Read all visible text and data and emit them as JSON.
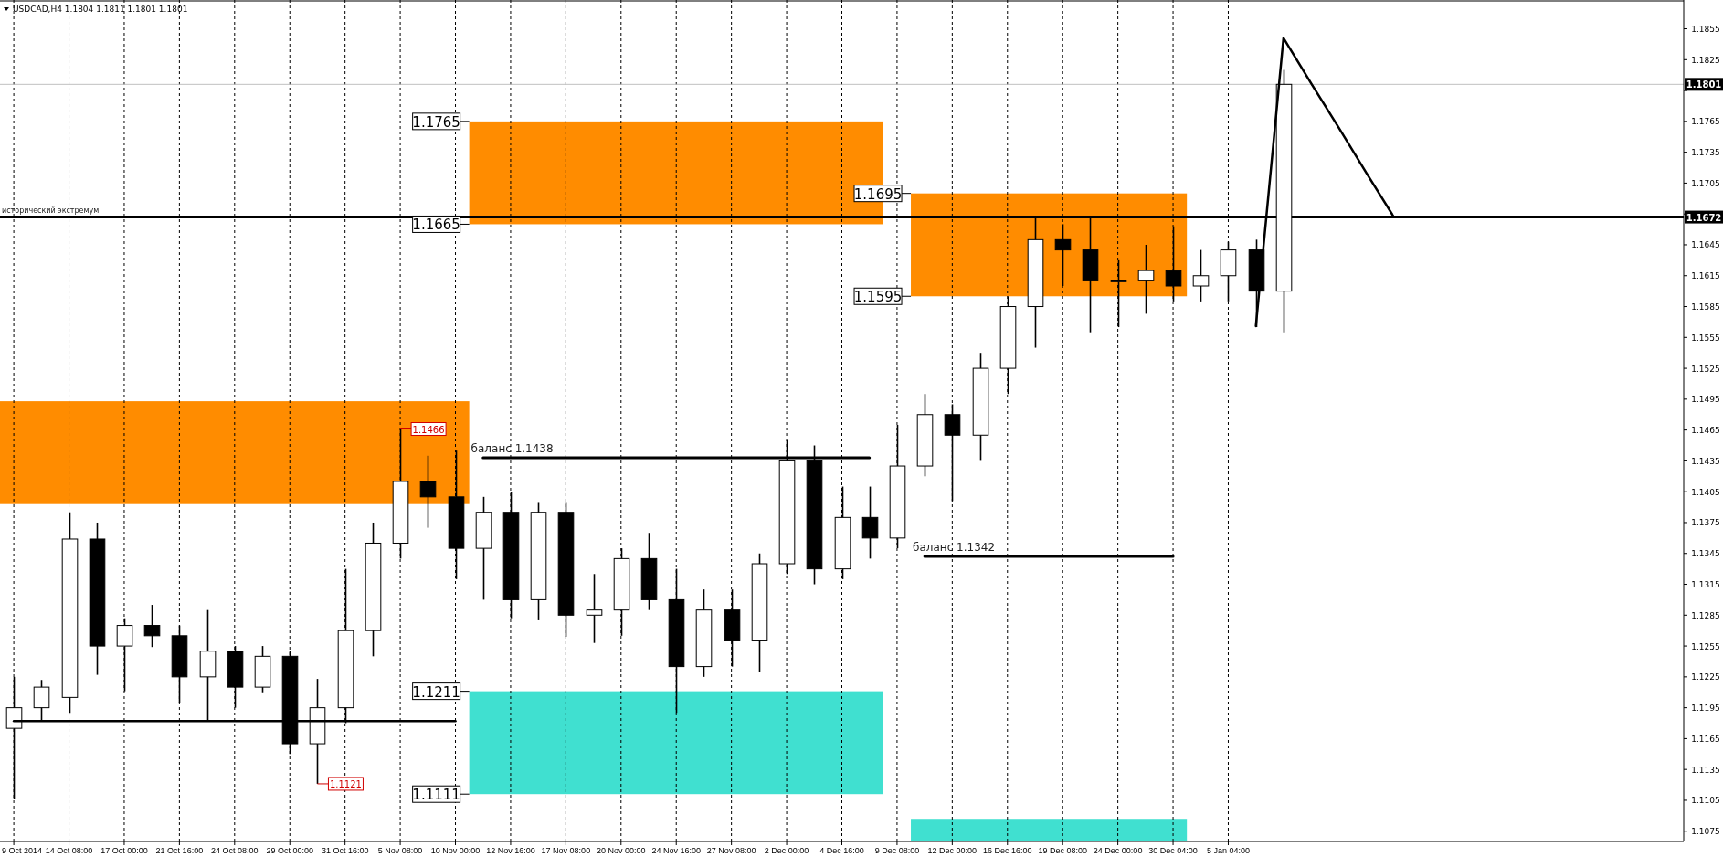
{
  "chart_data": {
    "type": "candlestick",
    "title": "USDCAD,H4  1.1804 1.1811 1.1801 1.1801",
    "ylim": [
      1.1065,
      1.1883
    ],
    "categories": [
      "9 Oct 2014",
      null,
      "14 Oct 08:00",
      null,
      "17 Oct 00:00",
      null,
      "21 Oct 16:00",
      null,
      "24 Oct 08:00",
      null,
      "29 Oct 00:00",
      null,
      "31 Oct 16:00",
      null,
      "5 Nov 08:00",
      null,
      "10 Nov 00:00",
      null,
      "12 Nov 16:00",
      null,
      "17 Nov 08:00",
      null,
      "20 Nov 00:00",
      null,
      "24 Nov 16:00",
      null,
      "27 Nov 08:00",
      null,
      "2 Dec 00:00",
      null,
      "4 Dec 16:00",
      null,
      "9 Dec 08:00",
      null,
      "12 Dec 00:00",
      null,
      "16 Dec 16:00",
      null,
      "19 Dec 08:00",
      null,
      "24 Dec 00:00",
      null,
      "30 Dec 04:00",
      null,
      "5 Jan 04:00",
      null,
      null,
      null,
      null,
      null,
      null,
      null,
      null,
      null,
      null,
      null,
      null,
      null,
      null,
      null,
      null
    ],
    "yticks": [
      1.1075,
      1.1105,
      1.1135,
      1.1165,
      1.1195,
      1.1225,
      1.1255,
      1.1285,
      1.1315,
      1.1345,
      1.1375,
      1.1405,
      1.1435,
      1.1465,
      1.1495,
      1.1525,
      1.1555,
      1.1585,
      1.1615,
      1.1645,
      {
        "value": 1.1675,
        "label": null
      },
      1.1705,
      1.1735,
      1.1765,
      {
        "value": 1.1795,
        "label": null
      },
      1.1825,
      1.1855
    ],
    "grid": "x",
    "color": "#000000",
    "ohlc": [
      [
        1.1175,
        1.1225,
        1.1106,
        1.1195
      ],
      [
        1.1195,
        1.1222,
        1.1183,
        1.1215
      ],
      [
        1.1205,
        1.1385,
        1.119,
        1.1359
      ],
      [
        1.1359,
        1.1375,
        1.1227,
        1.1255
      ],
      [
        1.1255,
        1.1282,
        1.1211,
        1.1275
      ],
      [
        1.1275,
        1.1295,
        1.1254,
        1.1265
      ],
      [
        1.1265,
        1.1275,
        1.12,
        1.1225
      ],
      [
        1.1225,
        1.129,
        1.1182,
        1.125
      ],
      [
        1.125,
        1.1255,
        1.1195,
        1.1215
      ],
      [
        1.1215,
        1.1255,
        1.121,
        1.1245
      ],
      [
        1.1245,
        1.125,
        1.115,
        1.116
      ],
      [
        1.116,
        1.1223,
        1.1121,
        1.1195
      ],
      [
        1.1195,
        1.133,
        1.118,
        1.127
      ],
      [
        1.127,
        1.1375,
        1.1245,
        1.1355
      ],
      [
        1.1355,
        1.1466,
        1.134,
        1.1415
      ],
      [
        1.1415,
        1.144,
        1.137,
        1.14
      ],
      [
        1.14,
        1.1445,
        1.132,
        1.135
      ],
      [
        1.135,
        1.14,
        1.13,
        1.1385
      ],
      [
        1.1385,
        1.1405,
        1.1282,
        1.13
      ],
      [
        1.13,
        1.1395,
        1.128,
        1.1385
      ],
      [
        1.1385,
        1.1395,
        1.1264,
        1.1285
      ],
      [
        1.1285,
        1.1325,
        1.1258,
        1.129
      ],
      [
        1.129,
        1.135,
        1.1265,
        1.134
      ],
      [
        1.134,
        1.1365,
        1.129,
        1.13
      ],
      [
        1.13,
        1.133,
        1.119,
        1.1235
      ],
      [
        1.1235,
        1.131,
        1.1225,
        1.129
      ],
      [
        1.129,
        1.131,
        1.1235,
        1.126
      ],
      [
        1.126,
        1.1345,
        1.123,
        1.1335
      ],
      [
        1.1335,
        1.1455,
        1.1325,
        1.1435
      ],
      [
        1.1435,
        1.145,
        1.1315,
        1.133
      ],
      [
        1.133,
        1.141,
        1.132,
        1.138
      ],
      [
        1.138,
        1.141,
        1.134,
        1.136
      ],
      [
        1.136,
        1.147,
        1.135,
        1.143
      ],
      [
        1.143,
        1.15,
        1.142,
        1.148
      ],
      [
        1.148,
        1.149,
        1.1396,
        1.146
      ],
      [
        1.146,
        1.154,
        1.1435,
        1.1525
      ],
      [
        1.1525,
        1.1595,
        1.15,
        1.1585
      ],
      [
        1.1585,
        1.1672,
        1.1545,
        1.165
      ],
      [
        1.165,
        1.1665,
        1.1605,
        1.164
      ],
      [
        1.164,
        1.1672,
        1.156,
        1.161
      ],
      [
        1.161,
        1.163,
        1.1565,
        1.161
      ],
      [
        1.161,
        1.1645,
        1.1578,
        1.162
      ],
      [
        1.162,
        1.1663,
        1.159,
        1.1605
      ],
      [
        1.1605,
        1.164,
        1.159,
        1.1615
      ],
      [
        1.1615,
        1.1648,
        1.159,
        1.164
      ],
      [
        1.164,
        1.165,
        1.1565,
        1.16
      ],
      [
        1.16,
        1.1815,
        1.156,
        1.1801
      ],
      null,
      null,
      null,
      null,
      null,
      null,
      null,
      null,
      null,
      null,
      null,
      null,
      null,
      null
    ],
    "series": [
      {
        "type": "line",
        "color": "#000000",
        "values": [
          1.1182,
          1.1182,
          1.1182,
          1.1182,
          1.1182,
          1.1182,
          1.1182,
          1.1182,
          1.1182,
          1.1182,
          1.1182,
          1.1182,
          1.1182,
          1.1182,
          1.1182,
          1.1182,
          1.1182,
          null,
          null,
          null,
          null,
          null,
          null,
          null,
          null,
          null,
          null,
          null,
          null,
          null,
          null,
          null,
          null,
          null,
          null,
          null,
          null,
          null,
          null,
          null,
          null,
          null,
          null,
          null,
          null,
          null,
          null,
          null,
          null,
          null,
          null,
          null,
          null,
          null,
          null,
          null,
          null,
          null,
          null,
          null,
          null
        ]
      },
      {
        "type": "line",
        "name": "баланс 1.1438",
        "color": "#000000",
        "values": [
          null,
          null,
          null,
          null,
          null,
          null,
          null,
          null,
          null,
          null,
          null,
          null,
          null,
          null,
          null,
          null,
          null,
          1.1438,
          1.1438,
          1.1438,
          1.1438,
          1.1438,
          1.1438,
          1.1438,
          1.1438,
          1.1438,
          1.1438,
          1.1438,
          1.1438,
          1.1438,
          1.1438,
          1.1438,
          null,
          null,
          null,
          null,
          null,
          null,
          null,
          null,
          null,
          null,
          null,
          null,
          null,
          null,
          null,
          null,
          null,
          null,
          null,
          null,
          null,
          null,
          null,
          null,
          null,
          null,
          null,
          null,
          null
        ]
      },
      {
        "type": "line",
        "name": "баланс 1.1342",
        "color": "#000000",
        "values": [
          null,
          null,
          null,
          null,
          null,
          null,
          null,
          null,
          null,
          null,
          null,
          null,
          null,
          null,
          null,
          null,
          null,
          null,
          null,
          null,
          null,
          null,
          null,
          null,
          null,
          null,
          null,
          null,
          null,
          null,
          null,
          null,
          null,
          1.1342,
          1.1342,
          1.1342,
          1.1342,
          1.1342,
          1.1342,
          1.1342,
          1.1342,
          1.1342,
          1.1342,
          null,
          null,
          null,
          null,
          null,
          null,
          null,
          null,
          null,
          null,
          null,
          null,
          null,
          null,
          null,
          null,
          null,
          null
        ]
      },
      {
        "type": "line",
        "color": "#000000",
        "values": [
          null,
          null,
          null,
          null,
          null,
          null,
          null,
          null,
          null,
          null,
          null,
          null,
          null,
          null,
          null,
          null,
          null,
          null,
          null,
          null,
          null,
          null,
          null,
          null,
          null,
          null,
          null,
          null,
          null,
          null,
          null,
          null,
          null,
          null,
          null,
          null,
          null,
          null,
          null,
          null,
          null,
          null,
          null,
          null,
          null,
          1.1566,
          1.1846,
          1.1802,
          1.1759,
          1.1715,
          1.1672,
          null,
          null,
          null,
          null,
          null,
          null,
          null,
          null,
          null,
          null
        ]
      }
    ],
    "bands": [
      {
        "axis": "y",
        "from": 1.1393,
        "to": 1.1493,
        "color": "#ff8c00"
      },
      {
        "axis": "y",
        "from": 1.1665,
        "to": 1.1765,
        "color": "#ff8c00"
      },
      {
        "axis": "y",
        "from": 1.1595,
        "to": 1.1695,
        "color": "#ff8c00"
      },
      {
        "axis": "y",
        "from": 1.1111,
        "to": 1.1211,
        "color": "#40e0d0"
      },
      {
        "axis": "y",
        "from": 1.1065,
        "to": 1.1087,
        "color": "#40e0d0"
      }
    ],
    "ref_lines": [
      {
        "axis": "y",
        "value": 1.1672,
        "label": "исторический экстремум",
        "color": "#000000"
      },
      {
        "axis": "y",
        "value": 1.1801,
        "color": "#c0c0c0"
      }
    ],
    "annotations": [
      "1.1765",
      "1.1665",
      "1.1695",
      "1.1595",
      "1.1211",
      "1.1111",
      {
        "text": "1.1466",
        "y": 1.1466
      },
      {
        "text": "1.1121",
        "y": 1.1121
      },
      {
        "text": "1.1672",
        "y": 1.1672
      },
      {
        "text": "1.1801",
        "y": 1.1801
      }
    ]
  }
}
